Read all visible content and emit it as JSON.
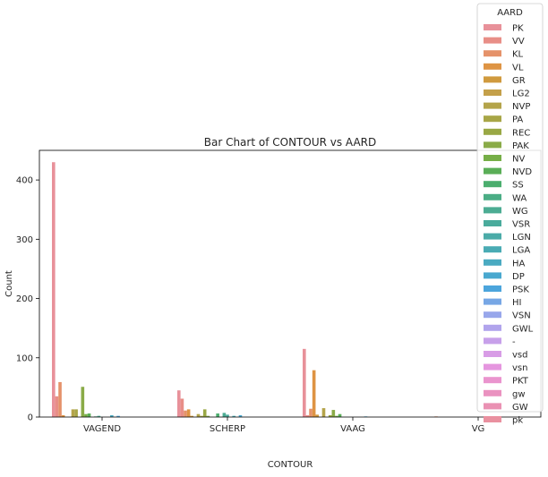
{
  "chart_data": {
    "type": "bar",
    "title": "Bar Chart of CONTOUR vs AARD",
    "xlabel": "CONTOUR",
    "ylabel": "Count",
    "ylim": [
      0,
      450
    ],
    "yticks": [
      0,
      100,
      200,
      300,
      400
    ],
    "categories": [
      "VAGEND",
      "SCHERP",
      "VAAG",
      "VG"
    ],
    "legend_title": "AARD",
    "legend_position": "upper-right",
    "series": [
      {
        "name": "PK",
        "color": "#e8919a",
        "values": [
          430,
          45,
          115,
          0
        ]
      },
      {
        "name": "VV",
        "color": "#e88e87",
        "values": [
          35,
          31,
          3,
          0
        ]
      },
      {
        "name": "KL",
        "color": "#e5926a",
        "values": [
          59,
          11,
          14,
          1
        ]
      },
      {
        "name": "VL",
        "color": "#de9444",
        "values": [
          3,
          13,
          79,
          0
        ]
      },
      {
        "name": "GR",
        "color": "#d09a3e",
        "values": [
          0,
          2,
          4,
          0
        ]
      },
      {
        "name": "LG2",
        "color": "#c4a04a",
        "values": [
          0,
          0,
          0,
          0
        ]
      },
      {
        "name": "NVP",
        "color": "#b4a44a",
        "values": [
          13,
          5,
          15,
          0
        ]
      },
      {
        "name": "PA",
        "color": "#a8a647",
        "values": [
          13,
          2,
          0,
          0
        ]
      },
      {
        "name": "REC",
        "color": "#99a844",
        "values": [
          0,
          13,
          3,
          0
        ]
      },
      {
        "name": "PAK",
        "color": "#8aab48",
        "values": [
          51,
          2,
          12,
          0
        ]
      },
      {
        "name": "NV",
        "color": "#76ae47",
        "values": [
          5,
          0,
          2,
          0
        ]
      },
      {
        "name": "NVD",
        "color": "#5aae57",
        "values": [
          6,
          0,
          5,
          0
        ]
      },
      {
        "name": "SS",
        "color": "#4bae6e",
        "values": [
          0,
          6,
          0,
          0
        ]
      },
      {
        "name": "WA",
        "color": "#4bad85",
        "values": [
          1,
          0,
          0,
          0
        ]
      },
      {
        "name": "WG",
        "color": "#4cac93",
        "values": [
          2,
          7,
          0,
          0
        ]
      },
      {
        "name": "VSR",
        "color": "#4aab9c",
        "values": [
          0,
          4,
          0,
          0
        ]
      },
      {
        "name": "LGN",
        "color": "#4baba8",
        "values": [
          0,
          0,
          0,
          0
        ]
      },
      {
        "name": "LGA",
        "color": "#4aabb4",
        "values": [
          0,
          2,
          0,
          0
        ]
      },
      {
        "name": "HA",
        "color": "#4aaac1",
        "values": [
          3,
          0,
          0,
          0
        ]
      },
      {
        "name": "DP",
        "color": "#49a8cf",
        "values": [
          0,
          3,
          1,
          0
        ]
      },
      {
        "name": "PSK",
        "color": "#4ca5dc",
        "values": [
          2,
          0,
          0,
          0
        ]
      },
      {
        "name": "HI",
        "color": "#77a7e5",
        "values": [
          0,
          0,
          0,
          0
        ]
      },
      {
        "name": "VSN",
        "color": "#98a7eb",
        "values": [
          0,
          0,
          0,
          0
        ]
      },
      {
        "name": "GWL",
        "color": "#b1a4ec",
        "values": [
          0,
          0,
          0,
          0
        ]
      },
      {
        "name": "-",
        "color": "#c7a0ea",
        "values": [
          0,
          0,
          0,
          0
        ]
      },
      {
        "name": "vsd",
        "color": "#d89ce6",
        "values": [
          0,
          0,
          0,
          0
        ]
      },
      {
        "name": "vsn",
        "color": "#e596df",
        "values": [
          0,
          0,
          0,
          0
        ]
      },
      {
        "name": "PKT",
        "color": "#ea94ce",
        "values": [
          0,
          0,
          0,
          0
        ]
      },
      {
        "name": "gw",
        "color": "#ea92c0",
        "values": [
          0,
          0,
          0,
          0
        ]
      },
      {
        "name": "GW",
        "color": "#ea91b3",
        "values": [
          0,
          0,
          0,
          0
        ]
      },
      {
        "name": "pk",
        "color": "#e9909f",
        "values": [
          0,
          0,
          0,
          0
        ]
      }
    ]
  }
}
